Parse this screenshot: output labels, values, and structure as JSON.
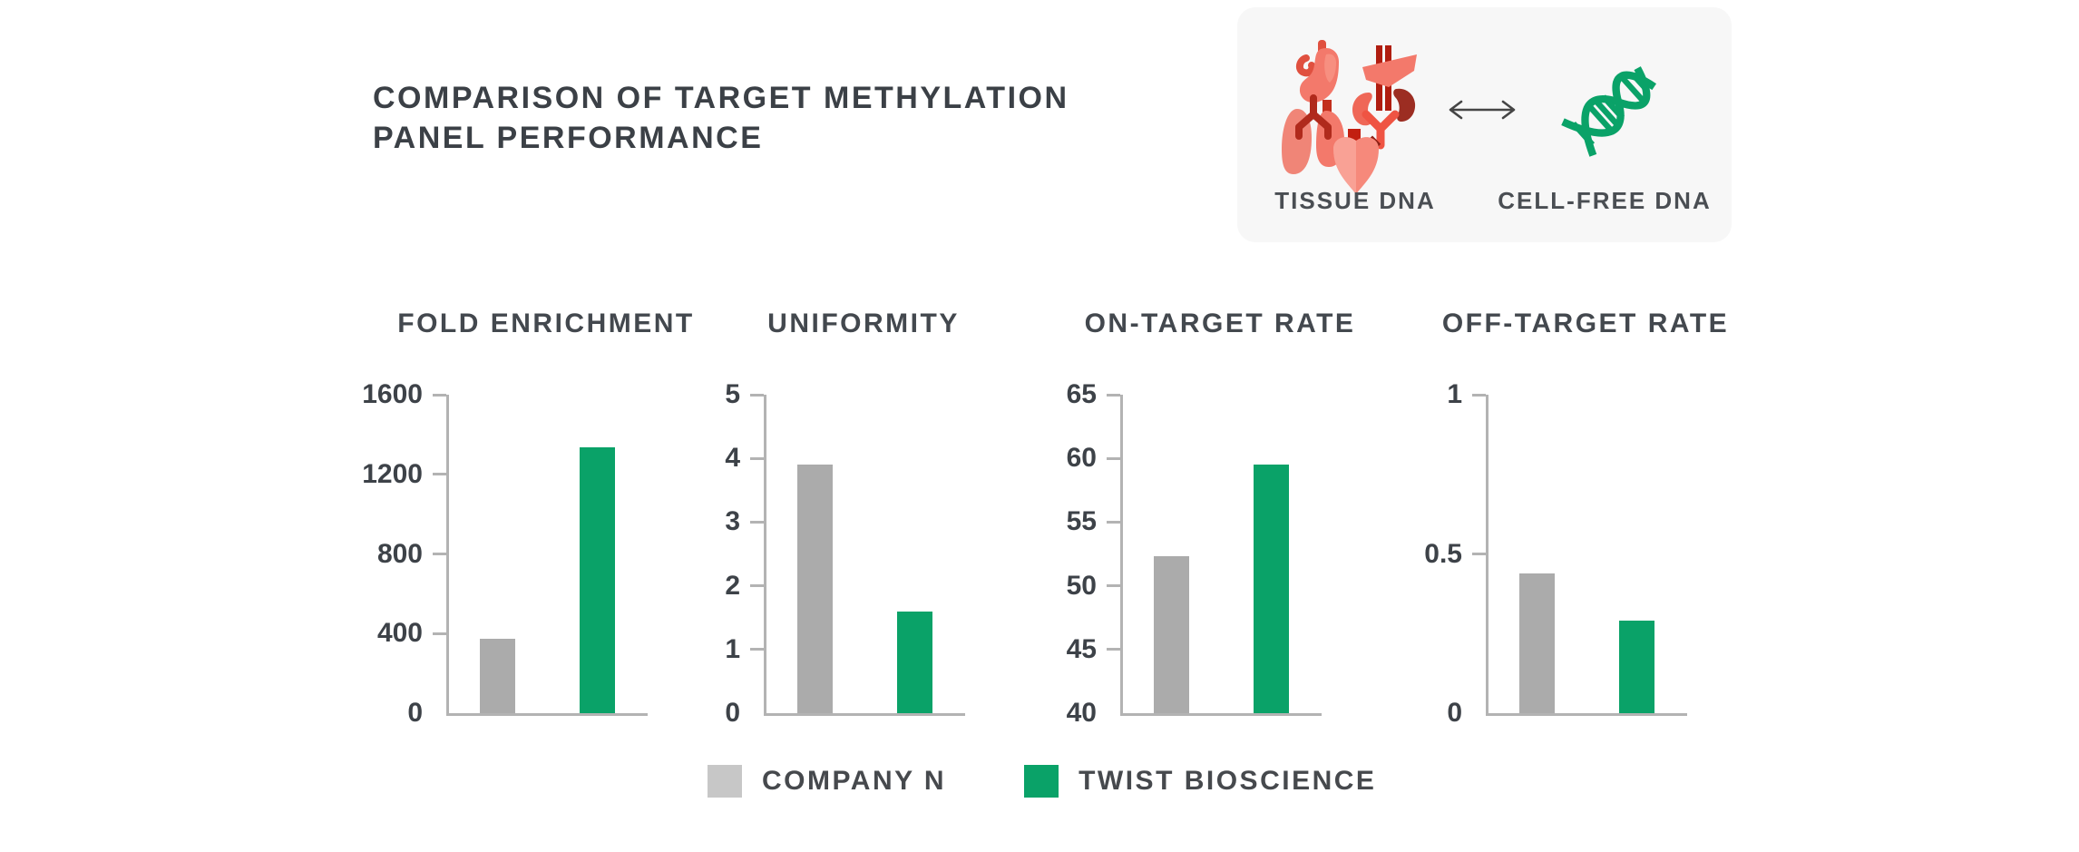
{
  "header": {
    "title_line1": "COMPARISON OF TARGET METHYLATION",
    "title_line2": "PANEL PERFORMANCE"
  },
  "sample_card": {
    "background": "#f7f7f7",
    "organs_icon": "human-organs-icon",
    "arrow_icon": "double-headed-arrow-icon",
    "dna_icon": "dna-helix-icon",
    "tissue_label": "TISSUE DNA",
    "cellfree_label": "CELL-FREE DNA"
  },
  "colors": {
    "title_text": "#3b4046",
    "axis_gray": "#b3b3b3",
    "bar_gray": "#ababab",
    "brand_green": "#0aa268",
    "legend_gray": "#c7c7c7",
    "organ_coral": "#f3796b",
    "organ_dark_red": "#9c2d22"
  },
  "legend": {
    "items": [
      {
        "label": "COMPANY N",
        "color": "#c7c7c7"
      },
      {
        "label": "TWIST BIOSCIENCE",
        "color": "#0aa268"
      }
    ]
  },
  "chart_data": [
    {
      "type": "bar",
      "title": "FOLD ENRICHMENT",
      "categories": [
        "COMPANY N",
        "TWIST BIOSCIENCE"
      ],
      "values": [
        375,
        1335
      ],
      "bar_colors": [
        "#ababab",
        "#0aa268"
      ],
      "ylim": [
        0,
        1600
      ],
      "ytick_values": [
        0,
        400,
        800,
        1200,
        1600
      ],
      "ytick_labels": [
        "0",
        "400",
        "800",
        "1200",
        "1600"
      ],
      "grid": false,
      "legend_position": "bottom-shared"
    },
    {
      "type": "bar",
      "title": "UNIFORMITY",
      "categories": [
        "COMPANY N",
        "TWIST BIOSCIENCE"
      ],
      "values": [
        3.9,
        1.6
      ],
      "bar_colors": [
        "#ababab",
        "#0aa268"
      ],
      "ylim": [
        0,
        5
      ],
      "ytick_values": [
        0,
        1,
        2,
        3,
        4,
        5
      ],
      "ytick_labels": [
        "0",
        "1",
        "2",
        "3",
        "4",
        "5"
      ],
      "grid": false,
      "legend_position": "bottom-shared"
    },
    {
      "type": "bar",
      "title": "ON-TARGET RATE",
      "categories": [
        "COMPANY N",
        "TWIST BIOSCIENCE"
      ],
      "values": [
        52.3,
        59.5
      ],
      "bar_colors": [
        "#ababab",
        "#0aa268"
      ],
      "ylim": [
        40,
        65
      ],
      "ytick_values": [
        40,
        45,
        50,
        55,
        60,
        65
      ],
      "ytick_labels": [
        "40",
        "45",
        "50",
        "55",
        "60",
        "65"
      ],
      "grid": false,
      "legend_position": "bottom-shared"
    },
    {
      "type": "bar",
      "title": "OFF-TARGET RATE",
      "categories": [
        "COMPANY N",
        "TWIST BIOSCIENCE"
      ],
      "values": [
        0.44,
        0.29
      ],
      "bar_colors": [
        "#ababab",
        "#0aa268"
      ],
      "ylim": [
        0,
        1
      ],
      "ytick_values": [
        0,
        0.5,
        1
      ],
      "ytick_labels": [
        "0",
        "0.5",
        "1"
      ],
      "grid": false,
      "legend_position": "bottom-shared"
    }
  ]
}
